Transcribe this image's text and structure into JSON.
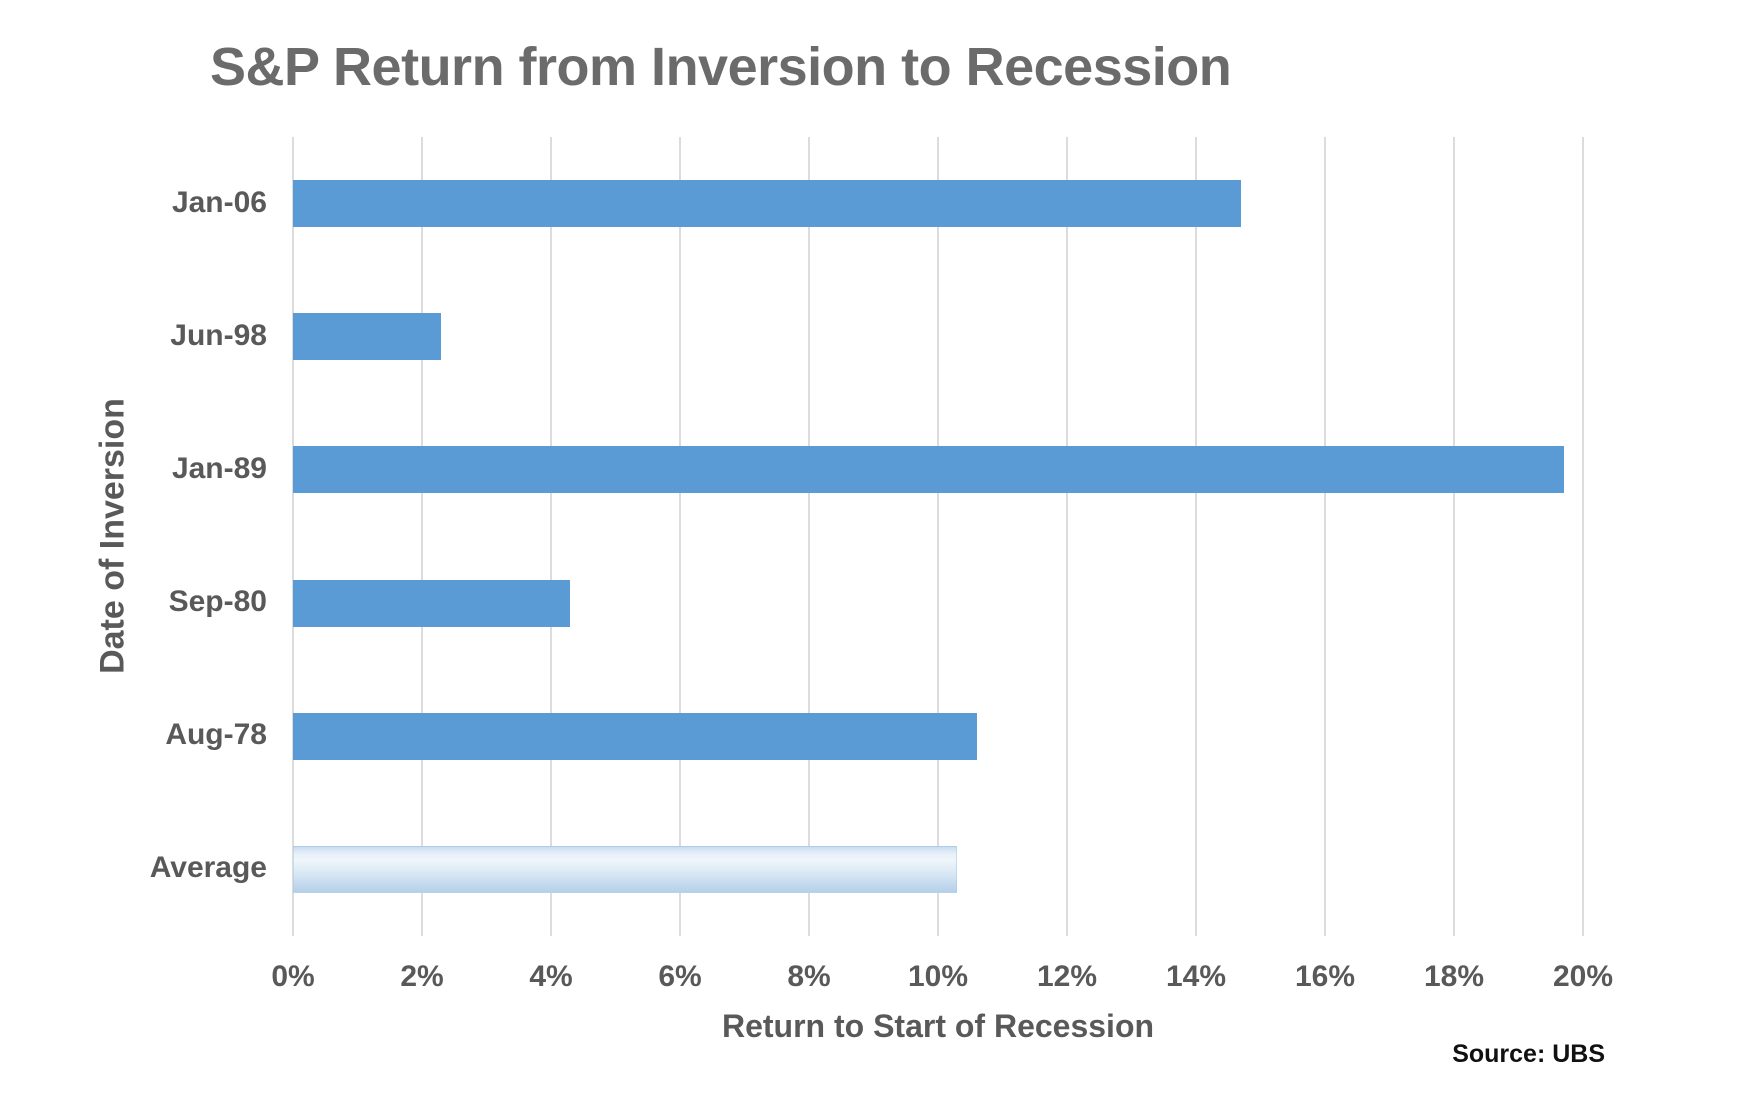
{
  "chart_data": {
    "type": "bar",
    "orientation": "horizontal",
    "title": "S&P Return from Inversion to Recession",
    "xlabel": "Return to Start of Recession",
    "ylabel": "Date of Inversion",
    "categories": [
      "Jan-06",
      "Jun-98",
      "Jan-89",
      "Sep-80",
      "Aug-78",
      "Average"
    ],
    "values": [
      14.7,
      2.3,
      19.7,
      4.3,
      10.6,
      10.3
    ],
    "xlim": [
      0,
      20
    ],
    "xtick_step": 2,
    "xtick_labels": [
      "0%",
      "2%",
      "4%",
      "6%",
      "8%",
      "10%",
      "12%",
      "14%",
      "16%",
      "18%",
      "20%"
    ],
    "grid": true,
    "legend": "none",
    "bar_color": "#5b9bd5",
    "average_bar_style": "light-blue vertical gradient",
    "gridline_color": "#dcdcdc",
    "text_color": "#595959",
    "title_color": "#6b6b6b"
  },
  "source": "Source: UBS"
}
